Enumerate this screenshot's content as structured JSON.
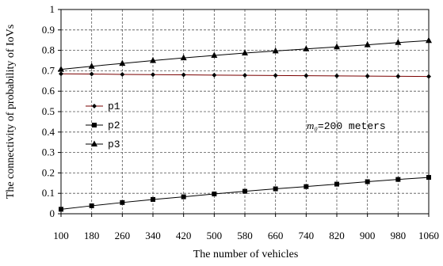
{
  "chart_data": {
    "type": "line",
    "xlabel": "The number of vehicles",
    "ylabel": "The connectivity of probability of IoVs",
    "x": [
      100,
      180,
      260,
      340,
      420,
      500,
      580,
      660,
      740,
      820,
      900,
      980,
      1060
    ],
    "x_tick_labels": [
      "100",
      "180",
      "260",
      "340",
      "420",
      "500",
      "580",
      "660",
      "740",
      "820",
      "900",
      "980",
      "1060"
    ],
    "y_tick_labels": [
      "0",
      "0.1",
      "0.2",
      "0.3",
      "0.4",
      "0.5",
      "0.6",
      "0.7",
      "0.8",
      "0.9",
      "1"
    ],
    "ylim": [
      0,
      1
    ],
    "grid": true,
    "legend_position": "left",
    "annotation": {
      "italic": "m₀",
      "text": "=200 meters"
    },
    "series": [
      {
        "name": "p1",
        "marker": "diamond",
        "color": "#7a0000",
        "values": [
          0.685,
          0.684,
          0.682,
          0.681,
          0.68,
          0.679,
          0.678,
          0.677,
          0.676,
          0.675,
          0.674,
          0.673,
          0.672
        ]
      },
      {
        "name": "p2",
        "marker": "square",
        "color": "#000000",
        "values": [
          0.022,
          0.039,
          0.055,
          0.07,
          0.083,
          0.097,
          0.11,
          0.122,
          0.133,
          0.145,
          0.157,
          0.168,
          0.178
        ]
      },
      {
        "name": "p3",
        "marker": "triangle",
        "color": "#000000",
        "values": [
          0.707,
          0.722,
          0.736,
          0.75,
          0.763,
          0.775,
          0.787,
          0.797,
          0.807,
          0.817,
          0.827,
          0.838,
          0.848
        ]
      }
    ]
  }
}
